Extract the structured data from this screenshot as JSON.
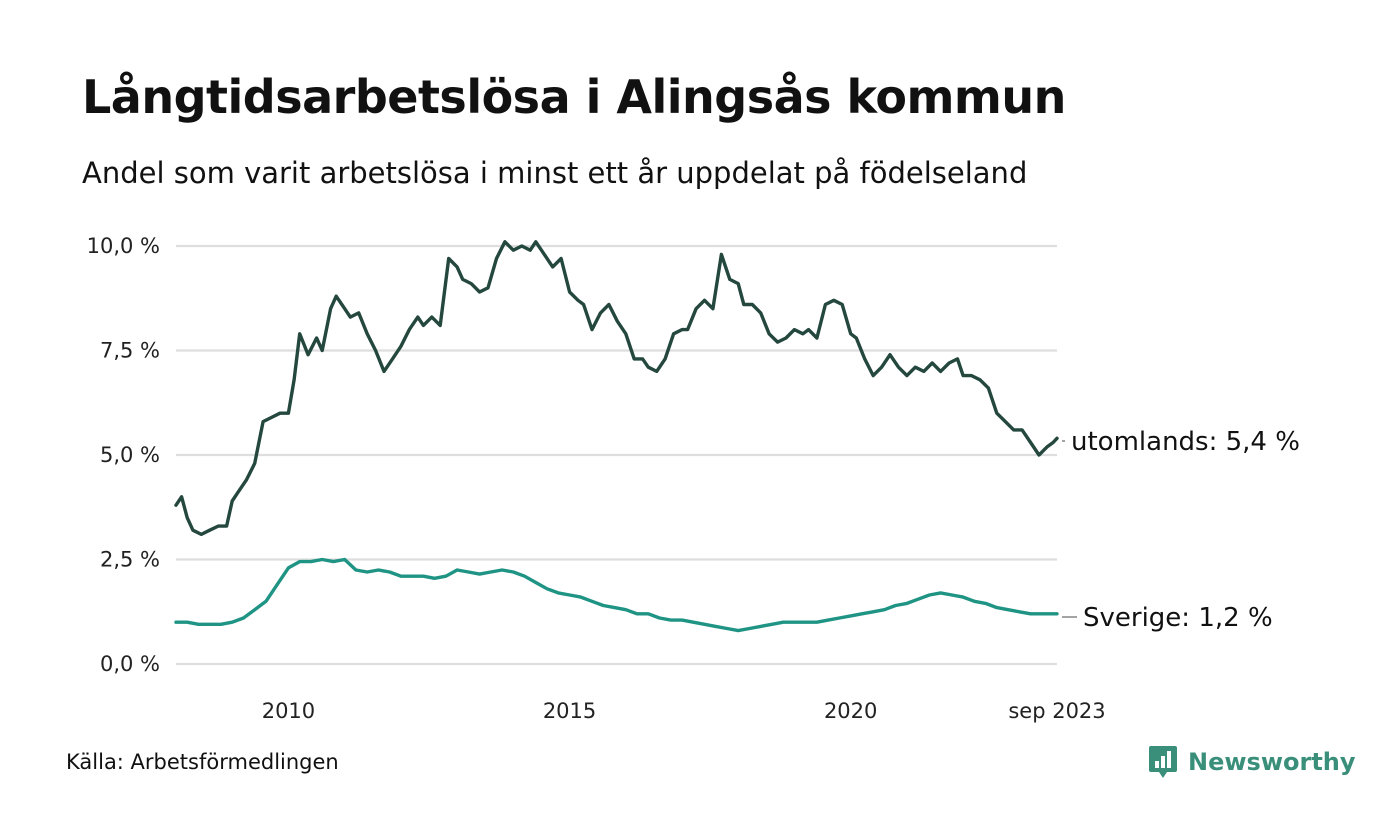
{
  "title": "Långtidsarbetslösa i Alingsås kommun",
  "subtitle": "Andel som varit arbetslösa i minst ett år uppdelat på födelseland",
  "source": "Källa: Arbetsförmedlingen",
  "brand": {
    "name": "Newsworthy",
    "color": "#3a8f7b",
    "icon": "bar-chart-icon"
  },
  "chart_data": {
    "type": "line",
    "x_start": "2008-01",
    "x_end": "2023-09",
    "xlim": [
      2008.0,
      2023.67
    ],
    "ylim": [
      0,
      10
    ],
    "y_ticks": [
      0,
      2.5,
      5,
      7.5,
      10
    ],
    "y_tick_labels": [
      "0,0 %",
      "2,5 %",
      "5,0 %",
      "7,5 %",
      "10,0 %"
    ],
    "x_ticks": [
      2010.0,
      2015.0,
      2020.0,
      2023.67
    ],
    "x_tick_labels": [
      "2010",
      "2015",
      "2020",
      "sep 2023"
    ],
    "grid": true,
    "series": [
      {
        "name": "utomlands",
        "label": "utomlands: 5,4 %",
        "color": "#24473e",
        "x": [
          2008.0,
          2008.1,
          2008.2,
          2008.3,
          2008.45,
          2008.6,
          2008.75,
          2008.9,
          2009.0,
          2009.1,
          2009.25,
          2009.4,
          2009.55,
          2009.7,
          2009.85,
          2010.0,
          2010.1,
          2010.2,
          2010.35,
          2010.5,
          2010.6,
          2010.75,
          2010.85,
          2011.0,
          2011.1,
          2011.25,
          2011.4,
          2011.55,
          2011.7,
          2011.85,
          2012.0,
          2012.15,
          2012.3,
          2012.4,
          2012.55,
          2012.7,
          2012.85,
          2013.0,
          2013.1,
          2013.25,
          2013.4,
          2013.55,
          2013.7,
          2013.85,
          2014.0,
          2014.15,
          2014.3,
          2014.4,
          2014.55,
          2014.7,
          2014.85,
          2015.0,
          2015.15,
          2015.25,
          2015.4,
          2015.55,
          2015.7,
          2015.85,
          2016.0,
          2016.15,
          2016.3,
          2016.4,
          2016.55,
          2016.7,
          2016.85,
          2017.0,
          2017.1,
          2017.25,
          2017.4,
          2017.55,
          2017.7,
          2017.85,
          2018.0,
          2018.1,
          2018.25,
          2018.4,
          2018.55,
          2018.7,
          2018.85,
          2019.0,
          2019.15,
          2019.25,
          2019.4,
          2019.55,
          2019.7,
          2019.85,
          2020.0,
          2020.1,
          2020.25,
          2020.4,
          2020.55,
          2020.7,
          2020.85,
          2021.0,
          2021.15,
          2021.3,
          2021.45,
          2021.6,
          2021.75,
          2021.9,
          2022.0,
          2022.15,
          2022.3,
          2022.45,
          2022.6,
          2022.75,
          2022.9,
          2023.05,
          2023.2,
          2023.35,
          2023.5,
          2023.6,
          2023.67
        ],
        "values": [
          3.8,
          4.0,
          3.5,
          3.2,
          3.1,
          3.2,
          3.3,
          3.3,
          3.9,
          4.1,
          4.4,
          4.8,
          5.8,
          5.9,
          6.0,
          6.0,
          6.8,
          7.9,
          7.4,
          7.8,
          7.5,
          8.5,
          8.8,
          8.5,
          8.3,
          8.4,
          7.9,
          7.5,
          7.0,
          7.3,
          7.6,
          8.0,
          8.3,
          8.1,
          8.3,
          8.1,
          9.7,
          9.5,
          9.2,
          9.1,
          8.9,
          9.0,
          9.7,
          10.1,
          9.9,
          10.0,
          9.9,
          10.1,
          9.8,
          9.5,
          9.7,
          8.9,
          8.7,
          8.6,
          8.0,
          8.4,
          8.6,
          8.2,
          7.9,
          7.3,
          7.3,
          7.1,
          7.0,
          7.3,
          7.9,
          8.0,
          8.0,
          8.5,
          8.7,
          8.5,
          9.8,
          9.2,
          9.1,
          8.6,
          8.6,
          8.4,
          7.9,
          7.7,
          7.8,
          8.0,
          7.9,
          8.0,
          7.8,
          8.6,
          8.7,
          8.6,
          7.9,
          7.8,
          7.3,
          6.9,
          7.1,
          7.4,
          7.1,
          6.9,
          7.1,
          7.0,
          7.2,
          7.0,
          7.2,
          7.3,
          6.9,
          6.9,
          6.8,
          6.6,
          6.0,
          5.8,
          5.6,
          5.6,
          5.3,
          5.0,
          5.2,
          5.3,
          5.4
        ]
      },
      {
        "name": "Sverige",
        "label": "Sverige: 1,2 %",
        "color": "#1f9484",
        "x": [
          2008.0,
          2008.2,
          2008.4,
          2008.6,
          2008.8,
          2009.0,
          2009.2,
          2009.4,
          2009.6,
          2009.8,
          2010.0,
          2010.2,
          2010.4,
          2010.6,
          2010.8,
          2011.0,
          2011.2,
          2011.4,
          2011.6,
          2011.8,
          2012.0,
          2012.2,
          2012.4,
          2012.6,
          2012.8,
          2013.0,
          2013.2,
          2013.4,
          2013.6,
          2013.8,
          2014.0,
          2014.2,
          2014.4,
          2014.6,
          2014.8,
          2015.0,
          2015.2,
          2015.4,
          2015.6,
          2015.8,
          2016.0,
          2016.2,
          2016.4,
          2016.6,
          2016.8,
          2017.0,
          2017.2,
          2017.4,
          2017.6,
          2017.8,
          2018.0,
          2018.2,
          2018.4,
          2018.6,
          2018.8,
          2019.0,
          2019.2,
          2019.4,
          2019.6,
          2019.8,
          2020.0,
          2020.2,
          2020.4,
          2020.6,
          2020.8,
          2021.0,
          2021.2,
          2021.4,
          2021.6,
          2021.8,
          2022.0,
          2022.2,
          2022.4,
          2022.6,
          2022.8,
          2023.0,
          2023.2,
          2023.4,
          2023.55,
          2023.67
        ],
        "values": [
          1.0,
          1.0,
          0.95,
          0.95,
          0.95,
          1.0,
          1.1,
          1.3,
          1.5,
          1.9,
          2.3,
          2.45,
          2.45,
          2.5,
          2.45,
          2.5,
          2.25,
          2.2,
          2.25,
          2.2,
          2.1,
          2.1,
          2.1,
          2.05,
          2.1,
          2.25,
          2.2,
          2.15,
          2.2,
          2.25,
          2.2,
          2.1,
          1.95,
          1.8,
          1.7,
          1.65,
          1.6,
          1.5,
          1.4,
          1.35,
          1.3,
          1.2,
          1.2,
          1.1,
          1.05,
          1.05,
          1.0,
          0.95,
          0.9,
          0.85,
          0.8,
          0.85,
          0.9,
          0.95,
          1.0,
          1.0,
          1.0,
          1.0,
          1.05,
          1.1,
          1.15,
          1.2,
          1.25,
          1.3,
          1.4,
          1.45,
          1.55,
          1.65,
          1.7,
          1.65,
          1.6,
          1.5,
          1.45,
          1.35,
          1.3,
          1.25,
          1.2,
          1.2,
          1.2,
          1.2
        ]
      }
    ]
  }
}
